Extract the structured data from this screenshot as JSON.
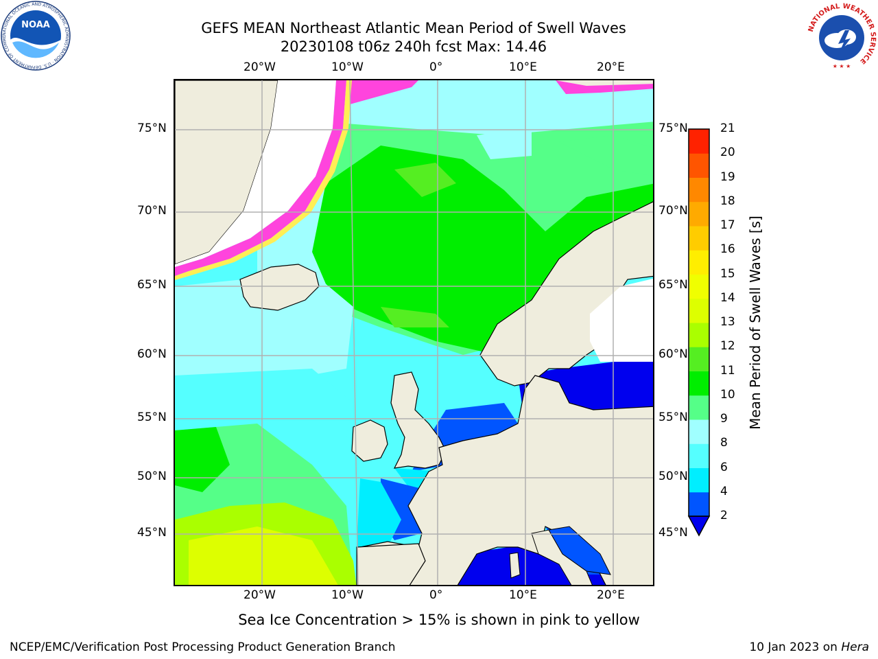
{
  "header": {
    "title_line1": "GEFS MEAN Northeast Atlantic Mean Period of Swell Waves",
    "title_line2": "20230108 t06z 240h fcst   Max: 14.46"
  },
  "logos": {
    "noaa_text": "NOAA",
    "noaa_ring_text": "NATIONAL OCEANIC AND ATMOSPHERIC ADMINISTRATION · U.S. DEPARTMENT OF COMMERCE",
    "nws_ring_text": "NATIONAL WEATHER SERVICE"
  },
  "map": {
    "lon_labels": [
      "20°W",
      "10°W",
      "0°",
      "10°E",
      "20°E"
    ],
    "lat_labels": [
      "75°N",
      "70°N",
      "65°N",
      "60°N",
      "55°N",
      "50°N",
      "45°N"
    ],
    "ice_note": "Sea Ice Concentration > 15% is shown in pink to yellow",
    "colors": {
      "land": "#efeddd",
      "ice_pink": "#ff44dd",
      "ice_yellow": "#ffee55",
      "grid": "#b0b0b0"
    }
  },
  "colorbar": {
    "label": "Mean Period of Swell Waves [s]",
    "ticks": [
      "2",
      "4",
      "6",
      "8",
      "9",
      "10",
      "11",
      "12",
      "13",
      "14",
      "15",
      "16",
      "17",
      "18",
      "19",
      "20",
      "21"
    ],
    "colors": [
      "#0055ff",
      "#00eeff",
      "#55ffff",
      "#a0ffff",
      "#55ff88",
      "#00ee00",
      "#55ee22",
      "#aaff00",
      "#ddff00",
      "#f0ff00",
      "#ffee00",
      "#ffcc00",
      "#ffaa00",
      "#ff8800",
      "#ff5500",
      "#ff2200"
    ],
    "under_color": "#0000ee"
  },
  "footer": {
    "left": "NCEP/EMC/Verification Post Processing Product Generation Branch",
    "right_prefix": "10 Jan 2023 on ",
    "right_host": "Hera"
  }
}
